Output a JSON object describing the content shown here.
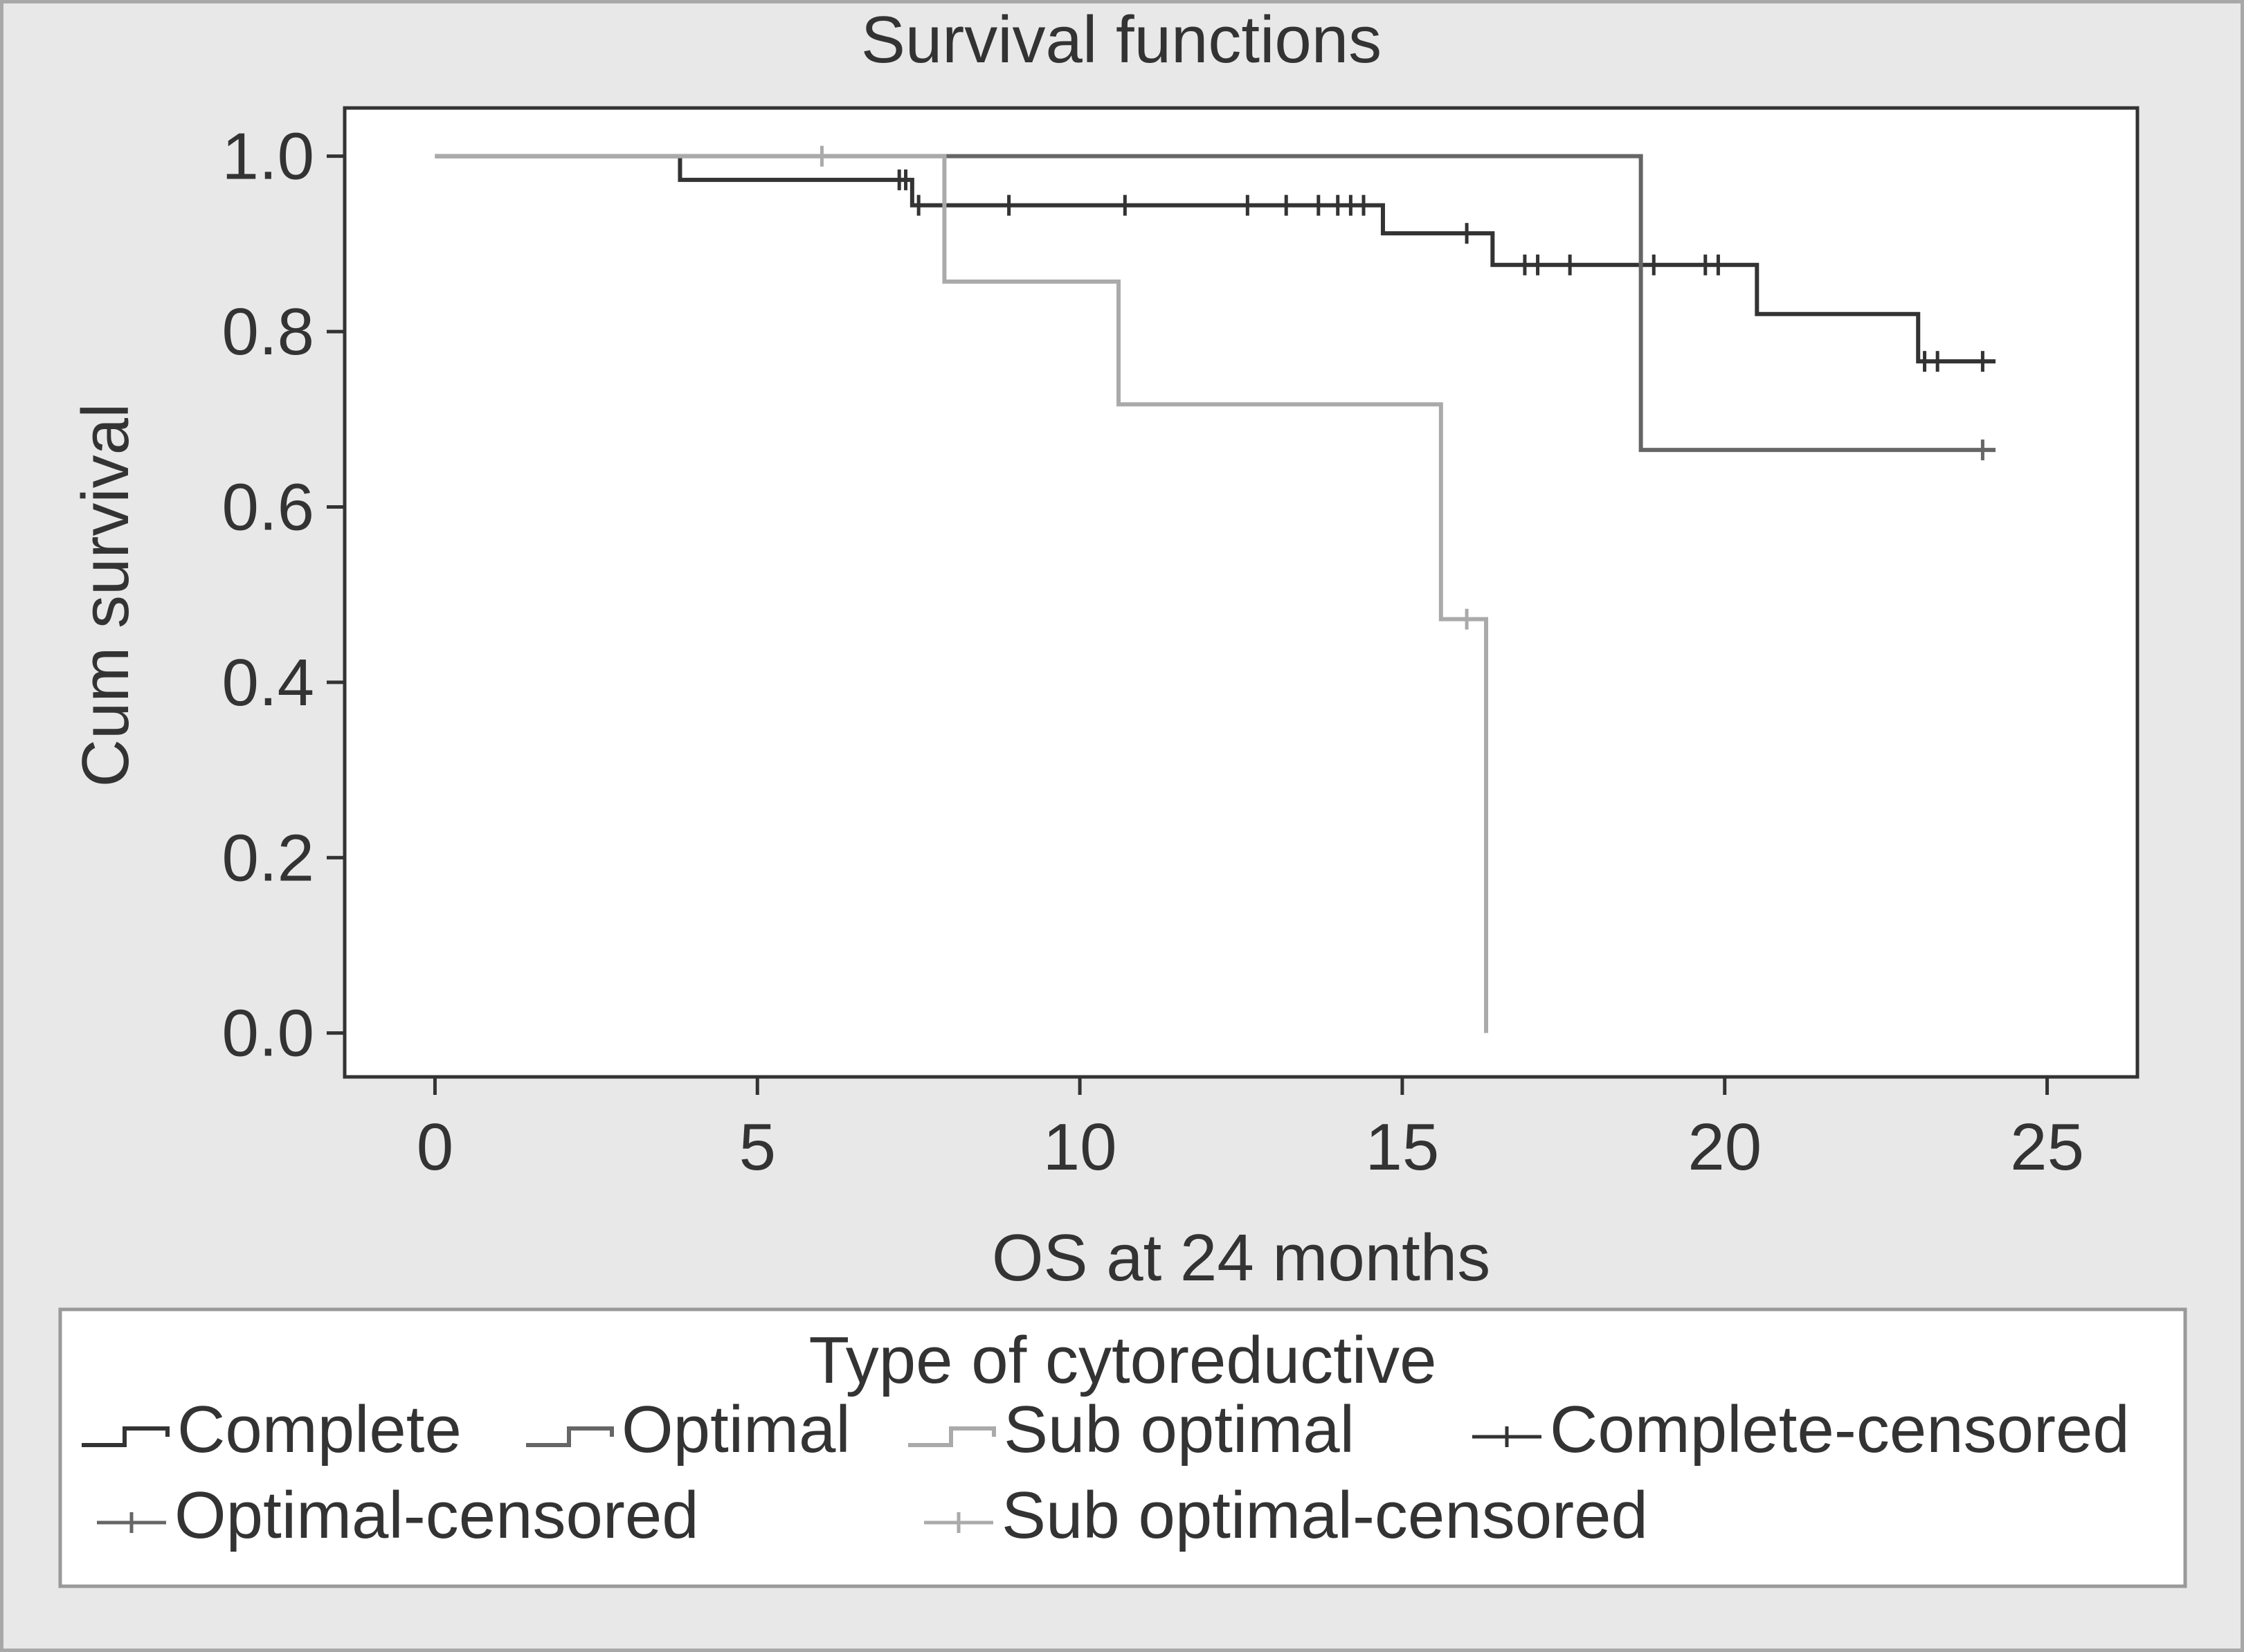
{
  "chart_data": {
    "type": "line",
    "title": "Survival functions",
    "xlabel": "OS at 24 months",
    "ylabel": "Cum survival",
    "xlim": [
      -1.4,
      26.4
    ],
    "ylim": [
      -0.05,
      1.055
    ],
    "x_ticks": [
      0,
      5,
      10,
      15,
      20,
      25
    ],
    "x_tick_labels": [
      "0",
      "5",
      "10",
      "15",
      "20",
      "25"
    ],
    "y_ticks": [
      0.0,
      0.2,
      0.4,
      0.6,
      0.8,
      1.0
    ],
    "y_tick_labels": [
      "0.0",
      "0.2",
      "0.4",
      "0.6",
      "0.8",
      "1.0"
    ],
    "grid": false,
    "legend": {
      "title": "Type of cytoreductive",
      "placement": "bottom",
      "entries": [
        {
          "label": "Complete",
          "kind": "step",
          "color": "#333333"
        },
        {
          "label": "Optimal",
          "kind": "step",
          "color": "#666666"
        },
        {
          "label": "Sub optimal",
          "kind": "step",
          "color": "#aaaaaa"
        },
        {
          "label": "Complete-censored",
          "kind": "censor",
          "color": "#333333"
        },
        {
          "label": "Optimal-censored",
          "kind": "censor",
          "color": "#666666"
        },
        {
          "label": "Sub optimal-censored",
          "kind": "censor",
          "color": "#aaaaaa"
        }
      ]
    },
    "series": [
      {
        "name": "Complete",
        "color": "#333333",
        "steps": [
          [
            0,
            1.0
          ],
          [
            3.8,
            0.973
          ],
          [
            7.4,
            0.944
          ],
          [
            14.7,
            0.912
          ],
          [
            16.4,
            0.876
          ],
          [
            20.5,
            0.82
          ],
          [
            23.0,
            0.766
          ]
        ],
        "end_x": 24.2,
        "censored": [
          [
            7.2,
            0.973
          ],
          [
            7.3,
            0.973
          ],
          [
            7.5,
            0.944
          ],
          [
            8.9,
            0.944
          ],
          [
            10.7,
            0.944
          ],
          [
            12.6,
            0.944
          ],
          [
            13.2,
            0.944
          ],
          [
            13.7,
            0.944
          ],
          [
            14.0,
            0.944
          ],
          [
            14.2,
            0.944
          ],
          [
            14.4,
            0.944
          ],
          [
            16.0,
            0.912
          ],
          [
            16.9,
            0.876
          ],
          [
            17.1,
            0.876
          ],
          [
            17.6,
            0.876
          ],
          [
            18.9,
            0.876
          ],
          [
            19.7,
            0.876
          ],
          [
            19.9,
            0.876
          ],
          [
            23.1,
            0.766
          ],
          [
            23.3,
            0.766
          ],
          [
            24.0,
            0.766
          ]
        ]
      },
      {
        "name": "Optimal",
        "color": "#666666",
        "steps": [
          [
            0,
            1.0
          ],
          [
            18.7,
            0.665
          ]
        ],
        "end_x": 24.2,
        "censored": [
          [
            24.0,
            0.665
          ]
        ]
      },
      {
        "name": "Sub optimal",
        "color": "#aaaaaa",
        "steps": [
          [
            0,
            1.0
          ],
          [
            7.9,
            0.857
          ],
          [
            10.6,
            0.717
          ],
          [
            15.6,
            0.472
          ],
          [
            16.3,
            0.0
          ]
        ],
        "end_x": 16.3,
        "censored": [
          [
            6.0,
            1.0
          ],
          [
            16.0,
            0.472
          ]
        ]
      }
    ]
  }
}
